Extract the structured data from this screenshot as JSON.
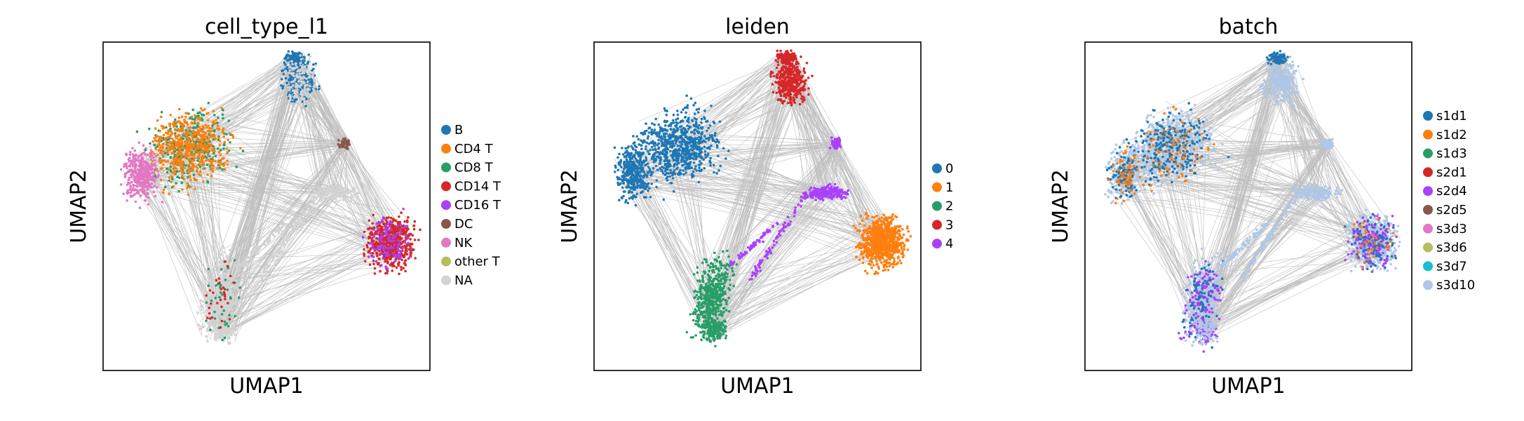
{
  "chart_data": [
    {
      "type": "scatter",
      "title": "cell_type_l1",
      "xlabel": "UMAP1",
      "ylabel": "UMAP2",
      "grid": false,
      "legend_placement": "right",
      "legend": [
        {
          "label": "B",
          "color": "#1f77b4"
        },
        {
          "label": "CD4 T",
          "color": "#ff7f0e"
        },
        {
          "label": "CD8 T",
          "color": "#279e68"
        },
        {
          "label": "CD14 T",
          "color": "#d62728"
        },
        {
          "label": "CD16 T",
          "color": "#aa40fc"
        },
        {
          "label": "DC",
          "color": "#8c564b"
        },
        {
          "label": "NK",
          "color": "#e377c2"
        },
        {
          "label": "other T",
          "color": "#b5bd61"
        },
        {
          "label": "NA",
          "color": "#d3d3d3"
        }
      ]
    },
    {
      "type": "scatter",
      "title": "leiden",
      "xlabel": "UMAP1",
      "ylabel": "UMAP2",
      "grid": false,
      "legend_placement": "right",
      "legend": [
        {
          "label": "0",
          "color": "#1f77b4"
        },
        {
          "label": "1",
          "color": "#ff7f0e"
        },
        {
          "label": "2",
          "color": "#279e68"
        },
        {
          "label": "3",
          "color": "#d62728"
        },
        {
          "label": "4",
          "color": "#aa40fc"
        }
      ]
    },
    {
      "type": "scatter",
      "title": "batch",
      "xlabel": "UMAP1",
      "ylabel": "UMAP2",
      "grid": false,
      "legend_placement": "right",
      "legend": [
        {
          "label": "s1d1",
          "color": "#1f77b4"
        },
        {
          "label": "s1d2",
          "color": "#ff7f0e"
        },
        {
          "label": "s1d3",
          "color": "#279e68"
        },
        {
          "label": "s2d1",
          "color": "#d62728"
        },
        {
          "label": "s2d4",
          "color": "#aa40fc"
        },
        {
          "label": "s2d5",
          "color": "#8c564b"
        },
        {
          "label": "s3d3",
          "color": "#e377c2"
        },
        {
          "label": "s3d6",
          "color": "#b5bd61"
        },
        {
          "label": "s3d7",
          "color": "#17becf"
        },
        {
          "label": "s3d10",
          "color": "#aec7e8"
        }
      ]
    }
  ],
  "colors": {
    "edges": "#808080",
    "axes_frame": "#000000"
  }
}
